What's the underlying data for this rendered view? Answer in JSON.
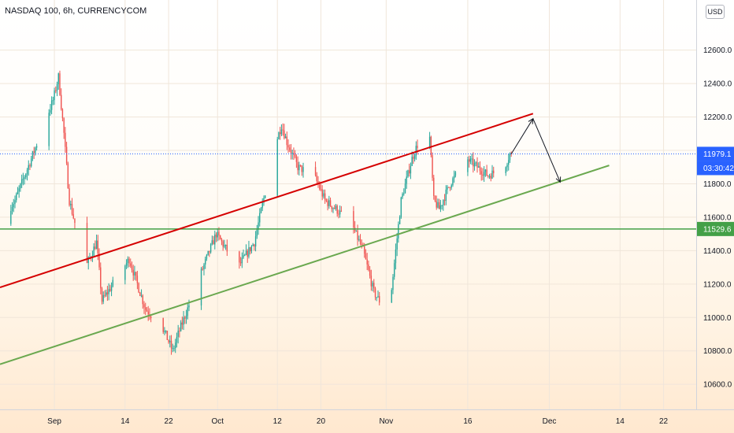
{
  "header": {
    "symbol_line": "NASDAQ 100, 6h, CURRENCYCOM",
    "currency": "USD"
  },
  "price_tags": {
    "current_price": "11979.1",
    "countdown": "03:30:42",
    "support_level": "11529.6"
  },
  "colors": {
    "bull": "#26a69a",
    "bear": "#ef5350",
    "channel_upper": "#d50000",
    "channel_lower": "#6aa84f",
    "support_line": "#43a047",
    "current_price_line": "#2962ff"
  },
  "chart_data": {
    "type": "candlestick",
    "title": "NASDAQ 100, 6h, CURRENCYCOM",
    "y_ticks": [
      "12600.0",
      "12400.0",
      "12200.0",
      "12000.0",
      "11800.0",
      "11600.0",
      "11400.0",
      "11200.0",
      "11000.0",
      "10800.0",
      "10600.0"
    ],
    "y_tick_values": [
      12600,
      12400,
      12200,
      12000,
      11800,
      11600,
      11400,
      11200,
      11000,
      10800,
      10600
    ],
    "x_ticks": [
      "Sep",
      "14",
      "22",
      "Oct",
      "12",
      "20",
      "Nov",
      "16",
      "Dec",
      "14",
      "22"
    ],
    "x_tick_dates": [
      "2020-09-01",
      "2020-09-14",
      "2020-09-22",
      "2020-10-01",
      "2020-10-12",
      "2020-10-20",
      "2020-11-01",
      "2020-11-16",
      "2020-12-01",
      "2020-12-14",
      "2020-12-22"
    ],
    "ylim": [
      10450,
      12900
    ],
    "xlim": [
      "2020-08-22",
      "2020-12-28"
    ],
    "anchors": [
      [
        "2020-08-22",
        11560
      ],
      [
        "2020-08-25",
        11700
      ],
      [
        "2020-08-28",
        11950
      ],
      [
        "2020-09-01",
        12300
      ],
      [
        "2020-09-02",
        12440
      ],
      [
        "2020-09-03",
        12100
      ],
      [
        "2020-09-04",
        11700
      ],
      [
        "2020-09-07",
        11300
      ],
      [
        "2020-09-09",
        11450
      ],
      [
        "2020-09-10",
        11100
      ],
      [
        "2020-09-12",
        11200
      ],
      [
        "2020-09-15",
        11350
      ],
      [
        "2020-09-18",
        11050
      ],
      [
        "2020-09-21",
        10950
      ],
      [
        "2020-09-23",
        10800
      ],
      [
        "2020-09-24",
        10900
      ],
      [
        "2020-09-28",
        11250
      ],
      [
        "2020-10-01",
        11500
      ],
      [
        "2020-10-05",
        11300
      ],
      [
        "2020-10-08",
        11450
      ],
      [
        "2020-10-12",
        12050
      ],
      [
        "2020-10-13",
        12150
      ],
      [
        "2020-10-14",
        12050
      ],
      [
        "2020-10-16",
        11900
      ],
      [
        "2020-10-19",
        11850
      ],
      [
        "2020-10-21",
        11700
      ],
      [
        "2020-10-23",
        11650
      ],
      [
        "2020-10-26",
        11550
      ],
      [
        "2020-10-28",
        11400
      ],
      [
        "2020-10-30",
        11150
      ],
      [
        "2020-11-01",
        11050
      ],
      [
        "2020-11-02",
        11100
      ],
      [
        "2020-11-04",
        11700
      ],
      [
        "2020-11-06",
        11950
      ],
      [
        "2020-11-09",
        12200
      ],
      [
        "2020-11-10",
        11700
      ],
      [
        "2020-11-11",
        11650
      ],
      [
        "2020-11-13",
        11800
      ],
      [
        "2020-11-16",
        11950
      ],
      [
        "2020-11-18",
        11900
      ],
      [
        "2020-11-20",
        11850
      ],
      [
        "2020-11-23",
        11900
      ],
      [
        "2020-11-24",
        11979.1
      ]
    ],
    "channel_upper": [
      [
        "2020-08-22",
        11180
      ],
      [
        "2020-11-28",
        12220
      ]
    ],
    "channel_lower": [
      [
        "2020-08-22",
        10720
      ],
      [
        "2020-12-12",
        11910
      ]
    ],
    "support_level": 11529.6,
    "current_price": 11979.1,
    "projection": [
      [
        "2020-11-24",
        11979.1
      ],
      [
        "2020-11-28",
        12190
      ],
      [
        "2020-12-03",
        11810
      ]
    ]
  }
}
